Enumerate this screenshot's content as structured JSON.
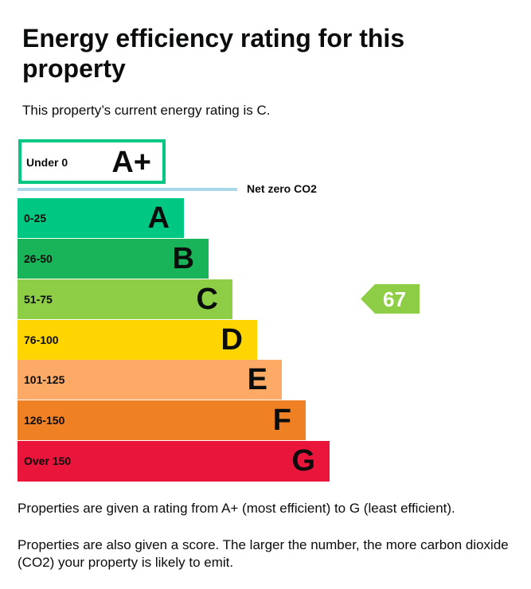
{
  "title": "Energy efficiency rating for this property",
  "intro": "This property’s current energy rating is C.",
  "aplus": {
    "range": "Under 0",
    "letter": "A+",
    "color": "#00c781"
  },
  "net_zero": "Net zero CO2",
  "bands": [
    {
      "range": "0-25",
      "letter": "A",
      "color": "#00c781"
    },
    {
      "range": "26-50",
      "letter": "B",
      "color": "#19b459"
    },
    {
      "range": "51-75",
      "letter": "C",
      "color": "#8dce46"
    },
    {
      "range": "76-100",
      "letter": "D",
      "color": "#ffd500"
    },
    {
      "range": "101-125",
      "letter": "E",
      "color": "#fcaa65"
    },
    {
      "range": "126-150",
      "letter": "F",
      "color": "#ef8023"
    },
    {
      "range": "Over 150",
      "letter": "G",
      "color": "#e9153b"
    }
  ],
  "current": {
    "score": "67",
    "band": "C",
    "color": "#8dce46"
  },
  "para1": "Properties are given a rating from A+ (most efficient) to G (least efficient).",
  "para2": "Properties are also given a score. The larger the number, the more carbon dioxide (CO2) your property is likely to emit."
}
